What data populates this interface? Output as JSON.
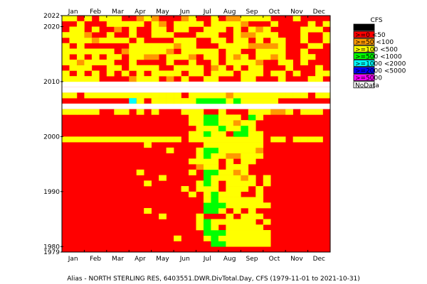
{
  "chart_data": {
    "type": "heatmap",
    "title": "",
    "caption": "Alias - NORTH STERLING RES, 6403551.DWR.DivTotal.Day, CFS (1979-11-01 to 2021-10-31)",
    "x_months": [
      "Jan",
      "Feb",
      "Mar",
      "Apr",
      "May",
      "Jun",
      "Jul",
      "Aug",
      "Sep",
      "Oct",
      "Nov",
      "Dec"
    ],
    "y_tick_labels": [
      "2022",
      "2020",
      "2010",
      "2000",
      "1990",
      "1980",
      "1979"
    ],
    "y_range": [
      1979,
      2022
    ],
    "period": [
      "1979-11-01",
      "2021-10-31"
    ],
    "legend": {
      "title": "CFS",
      "placement": "right",
      "entries": [
        {
          "label": "<0",
          "color": "#000000"
        },
        {
          "label": ">=0 <50",
          "color": "#ff0000"
        },
        {
          "label": ">=50 <100",
          "color": "#ff9900"
        },
        {
          "label": ">=100 <500",
          "color": "#ffff00"
        },
        {
          "label": ">=500 <1000",
          "color": "#00ff00"
        },
        {
          "label": ">=1000 <2000",
          "color": "#00ffff"
        },
        {
          "label": ">=2000 <5000",
          "color": "#0000ff"
        },
        {
          "label": ">=5000",
          "color": "#ff00ff"
        },
        {
          "label": "NoData",
          "color": "#ffffff"
        }
      ]
    },
    "nodata_years": [
      2005,
      2008,
      2009
    ],
    "bands_approx": [
      {
        "years": [
          1980,
          1990
        ],
        "yellow_months": [
          6.3,
          9.2
        ],
        "green_months": [
          6.4,
          7.4
        ]
      },
      {
        "years": [
          1990,
          1999
        ],
        "yellow_months": [
          6.0,
          9.0
        ],
        "green_months": [
          6.3,
          7.0
        ]
      },
      {
        "years": [
          2000,
          2004
        ],
        "yellow_months": [
          5.7,
          8.8
        ],
        "green_months": [
          6.3,
          8.5
        ]
      },
      {
        "years": [
          2006,
          2007
        ],
        "yellow_months": [
          3.3,
          10.0
        ],
        "green_months": [
          6.0,
          8.8
        ]
      },
      {
        "years": [
          2010,
          2021
        ],
        "yellow_months": [
          0.0,
          12.0
        ],
        "green_months": []
      }
    ]
  }
}
